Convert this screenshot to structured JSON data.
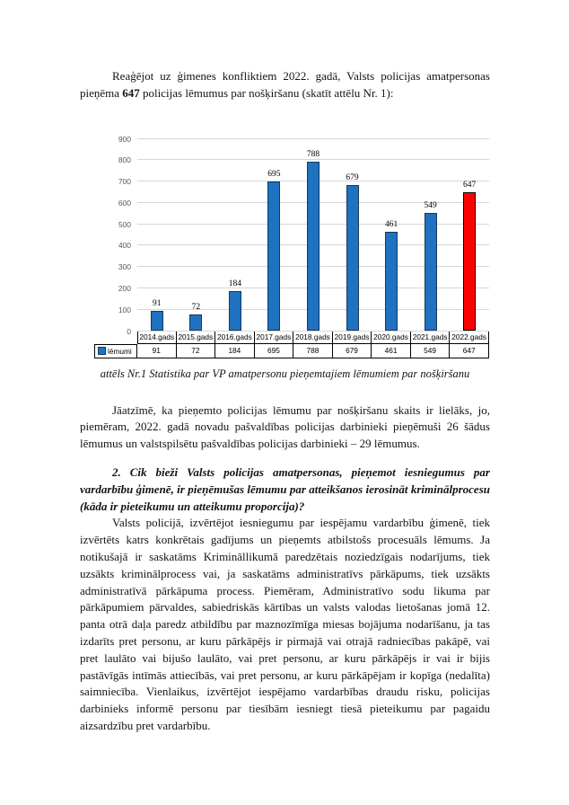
{
  "doc": {
    "p1": {
      "pre": "Reaģējot uz ģimenes konfliktiem 2022. gadā, Valsts policijas amatpersonas pieņēma ",
      "bold": "647",
      "post": " policijas lēmumus par nošķiršanu (skatīt attēlu Nr. 1):"
    },
    "caption": "attēls Nr.1 Statistika par  VP amatpersonu pieņemtajiem lēmumiem par nošķiršanu",
    "p2": "Jāatzīmē, ka pieņemto policijas lēmumu par nošķiršanu skaits ir lielāks, jo, piemēram, 2022. gadā novadu pašvaldības policijas darbinieki pieņēmuši 26 šādus lēmumus un valstspilsētu pašvaldības policijas darbinieki – 29 lēmumus.",
    "heading2": "2. Cik bieži Valsts policijas amatpersonas, pieņemot iesniegumus par vardarbību ģimenē, ir pieņēmušas lēmumu par atteikšanos ierosināt kriminālprocesu (kāda ir pieteikumu un atteikumu proporcija)?",
    "p3": "Valsts policijā, izvērtējot iesniegumu par iespējamu vardarbību ģimenē, tiek izvērtēts katrs konkrētais gadījums un pieņemts atbilstošs procesuāls lēmums. Ja notikušajā ir saskatāms Krimināllikumā paredzētais noziedzīgais nodarījums, tiek uzsākts kriminālprocess vai, ja saskatāms administratīvs pārkāpums, tiek uzsākts administratīvā pārkāpuma process. Piemēram, Administratīvo sodu likuma par pārkāpumiem pārvaldes, sabiedriskās kārtības un valsts valodas lietošanas jomā 12. panta otrā daļa paredz atbildību par maznozīmīga miesas bojājuma nodarīšanu, ja tas izdarīts pret personu, ar kuru pārkāpējs ir pirmajā vai otrajā radniecības pakāpē, vai pret laulāto vai bijušo laulāto, vai pret personu, ar kuru pārkāpējs ir vai ir bijis pastāvīgās intīmās attiecībās, vai pret personu, ar kuru pārkāpējam ir kopīga (nedalīta) saimniecība. Vienlaikus, izvērtējot iespējamo vardarbības draudu risku, policijas darbinieks informē personu par tiesībām iesniegt tiesā pieteikumu par pagaidu aizsardzību pret vardarbību."
  },
  "chart_data": {
    "type": "bar",
    "categories": [
      "2014.gads",
      "2015.gads",
      "2016.gads",
      "2017.gads",
      "2018.gads",
      "2019.gads",
      "2020.gads",
      "2021.gads",
      "2022.gads"
    ],
    "series": [
      {
        "name": "lēmumi",
        "values": [
          91,
          72,
          184,
          695,
          788,
          679,
          461,
          549,
          647
        ]
      }
    ],
    "title": "",
    "xlabel": "",
    "ylabel": "",
    "ylim": [
      0,
      900
    ],
    "ytick_step": 100,
    "grid": true,
    "data_table_shown": true,
    "legend_label": "lēmumi",
    "colors": {
      "bar_fill": "#1f72c0",
      "bar_fill_highlight": "#ff0000",
      "highlight_index": 8,
      "bar_border": "#17375e",
      "bar_border_highlight": "#000000",
      "gridline": "#d6d6d6",
      "axis_label": "#595959",
      "table_border": "#000000"
    }
  }
}
